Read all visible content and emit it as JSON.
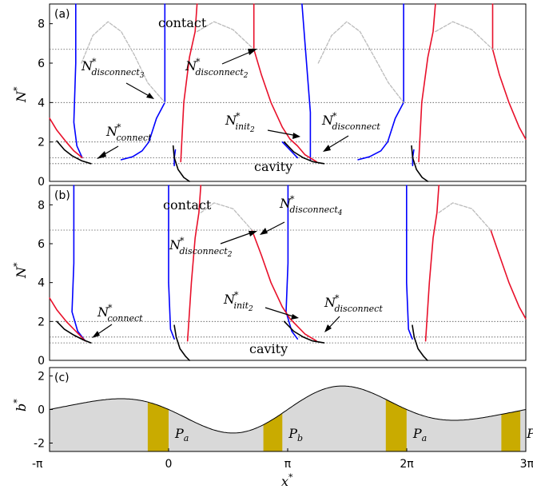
{
  "chart_data": [
    {
      "panel": "(a)",
      "type": "line",
      "ylabel": "N*",
      "ylim": [
        0,
        9
      ],
      "xlim": [
        -3.1416,
        9.4248
      ],
      "yticks": [
        "0",
        "2",
        "4",
        "6",
        "8"
      ],
      "grid": false,
      "reference_levels": [
        0.9,
        1.2,
        2.0,
        4.0,
        6.7
      ],
      "annotations": [
        {
          "base": "N",
          "sup": "*",
          "sub": "connect"
        },
        {
          "base": "N",
          "sup": "*",
          "sub": "disconnect",
          "subsub": "3"
        },
        {
          "base": "N",
          "sup": "*",
          "sub": "disconnect",
          "subsub": "2"
        },
        {
          "base": "N",
          "sup": "*",
          "sub": "init",
          "subsub": "2"
        },
        {
          "base": "N",
          "sup": "*",
          "sub": "disconnect"
        }
      ],
      "region_labels": [
        "contact",
        "cavity"
      ],
      "series": [
        {
          "color": "#0000ff",
          "segments": [
            [
              [
                -2.45,
                9
              ],
              [
                -2.45,
                6
              ],
              [
                -2.5,
                3
              ],
              [
                -2.42,
                1.8
              ],
              [
                -2.28,
                1.2
              ]
            ],
            [
              [
                -0.1,
                9
              ],
              [
                -0.1,
                4.0
              ],
              [
                -0.32,
                3.2
              ],
              [
                -0.52,
                2.0
              ],
              [
                -0.7,
                1.55
              ],
              [
                -0.95,
                1.25
              ],
              [
                -1.25,
                1.1
              ]
            ],
            [
              [
                0.15,
                0.8
              ],
              [
                0.15,
                1.2
              ],
              [
                0.18,
                1.6
              ]
            ],
            [
              [
                3.74,
                1.1
              ],
              [
                3.74,
                3.5
              ],
              [
                3.6,
                7.0
              ],
              [
                3.52,
                9
              ]
            ],
            [
              [
                3.4,
                1.2
              ],
              [
                3.25,
                1.5
              ],
              [
                3.0,
                2.0
              ]
            ],
            [
              [
                6.2,
                9
              ],
              [
                6.2,
                4.0
              ],
              [
                5.98,
                3.2
              ],
              [
                5.78,
                2.0
              ],
              [
                5.6,
                1.55
              ],
              [
                5.3,
                1.25
              ],
              [
                5.0,
                1.1
              ]
            ],
            [
              [
                6.44,
                0.8
              ],
              [
                6.44,
                1.2
              ],
              [
                6.47,
                1.6
              ]
            ]
          ]
        },
        {
          "color": "#e8102a",
          "segments": [
            [
              [
                -3.14,
                3.2
              ],
              [
                -2.95,
                2.6
              ],
              [
                -2.7,
                2.0
              ],
              [
                -2.5,
                1.55
              ],
              [
                -2.28,
                1.2
              ]
            ],
            [
              [
                0.32,
                1.0
              ],
              [
                0.4,
                4.0
              ],
              [
                0.55,
                6.3
              ],
              [
                0.7,
                7.6
              ],
              [
                0.75,
                9
              ]
            ],
            [
              [
                2.25,
                9
              ],
              [
                2.25,
                6.7
              ],
              [
                2.45,
                5.4
              ],
              [
                2.7,
                4.0
              ],
              [
                3.0,
                2.75
              ],
              [
                3.2,
                2.15
              ],
              [
                3.4,
                1.8
              ],
              [
                3.6,
                1.35
              ],
              [
                3.9,
                1.0
              ]
            ],
            [
              [
                6.6,
                1.0
              ],
              [
                6.68,
                4.0
              ],
              [
                6.84,
                6.3
              ],
              [
                6.98,
                7.6
              ],
              [
                7.04,
                9
              ]
            ],
            [
              [
                8.55,
                9
              ],
              [
                8.55,
                6.7
              ],
              [
                8.73,
                5.4
              ],
              [
                8.98,
                4.0
              ],
              [
                9.25,
                2.75
              ],
              [
                9.42,
                2.15
              ]
            ]
          ]
        },
        {
          "color": "#000000",
          "segments": [
            [
              [
                -2.95,
                2.05
              ],
              [
                -2.75,
                1.6
              ],
              [
                -2.55,
                1.3
              ],
              [
                -2.3,
                1.05
              ],
              [
                -2.05,
                0.9
              ]
            ],
            [
              [
                0.12,
                1.8
              ],
              [
                0.15,
                1.2
              ],
              [
                0.25,
                0.6
              ],
              [
                0.4,
                0.2
              ],
              [
                0.55,
                0.0
              ]
            ],
            [
              [
                3.05,
                2.0
              ],
              [
                3.3,
                1.5
              ],
              [
                3.55,
                1.2
              ],
              [
                3.8,
                1.0
              ],
              [
                4.1,
                0.9
              ]
            ],
            [
              [
                6.41,
                1.8
              ],
              [
                6.44,
                1.2
              ],
              [
                6.54,
                0.6
              ],
              [
                6.69,
                0.2
              ],
              [
                6.84,
                0.0
              ]
            ]
          ]
        },
        {
          "color": "#bbbbbb",
          "dashed": true,
          "segments": [
            [
              [
                -2.3,
                6.0
              ],
              [
                -2.0,
                7.4
              ],
              [
                -1.6,
                8.1
              ],
              [
                -1.25,
                7.6
              ],
              [
                -0.9,
                6.4
              ],
              [
                -0.55,
                5.0
              ],
              [
                -0.1,
                4.0
              ]
            ],
            [
              [
                0.75,
                7.6
              ],
              [
                1.2,
                8.1
              ],
              [
                1.7,
                7.7
              ],
              [
                2.25,
                6.7
              ]
            ],
            [
              [
                3.95,
                6.0
              ],
              [
                4.3,
                7.4
              ],
              [
                4.7,
                8.1
              ],
              [
                5.05,
                7.6
              ],
              [
                5.4,
                6.4
              ],
              [
                5.8,
                5.0
              ],
              [
                6.2,
                4.0
              ]
            ],
            [
              [
                7.04,
                7.6
              ],
              [
                7.5,
                8.1
              ],
              [
                8.0,
                7.7
              ],
              [
                8.55,
                6.7
              ]
            ]
          ]
        }
      ]
    },
    {
      "panel": "(b)",
      "type": "line",
      "ylabel": "N*",
      "ylim": [
        0,
        9
      ],
      "xlim": [
        -3.1416,
        9.4248
      ],
      "yticks": [
        "0",
        "2",
        "4",
        "6",
        "8"
      ],
      "grid": false,
      "reference_levels": [
        0.9,
        1.2,
        2.0,
        6.7
      ],
      "annotations": [
        {
          "base": "N",
          "sup": "*",
          "sub": "connect"
        },
        {
          "base": "N",
          "sup": "*",
          "sub": "disconnect",
          "subsub": "4"
        },
        {
          "base": "N",
          "sup": "*",
          "sub": "disconnect",
          "subsub": "2"
        },
        {
          "base": "N",
          "sup": "*",
          "sub": "init",
          "subsub": "2"
        },
        {
          "base": "N",
          "sup": "*",
          "sub": "disconnect"
        }
      ],
      "region_labels": [
        "contact",
        "cavity"
      ],
      "series": [
        {
          "color": "#0000ff",
          "segments": [
            [
              [
                -2.5,
                9
              ],
              [
                -2.5,
                5
              ],
              [
                -2.55,
                2.5
              ],
              [
                -2.4,
                1.5
              ],
              [
                -2.2,
                1.0
              ]
            ],
            [
              [
                0.0,
                9
              ],
              [
                0.0,
                4
              ],
              [
                0.05,
                1.6
              ],
              [
                0.15,
                1.1
              ]
            ],
            [
              [
                3.15,
                9
              ],
              [
                3.15,
                5
              ],
              [
                3.1,
                2.5
              ],
              [
                3.25,
                1.5
              ],
              [
                3.4,
                1.1
              ]
            ],
            [
              [
                6.28,
                9
              ],
              [
                6.28,
                4
              ],
              [
                6.33,
                1.6
              ],
              [
                6.43,
                1.1
              ]
            ]
          ]
        },
        {
          "color": "#e8102a",
          "segments": [
            [
              [
                -3.14,
                3.2
              ],
              [
                -2.95,
                2.6
              ],
              [
                -2.7,
                2.0
              ],
              [
                -2.45,
                1.5
              ],
              [
                -2.2,
                1.0
              ]
            ],
            [
              [
                0.5,
                1.0
              ],
              [
                0.6,
                4.0
              ],
              [
                0.7,
                6.3
              ],
              [
                0.8,
                7.6
              ],
              [
                0.85,
                9
              ]
            ],
            [
              [
                2.2,
                6.7
              ],
              [
                2.45,
                5.4
              ],
              [
                2.7,
                4.0
              ],
              [
                3.0,
                2.75
              ],
              [
                3.2,
                2.15
              ],
              [
                3.4,
                1.75
              ],
              [
                3.6,
                1.35
              ],
              [
                3.9,
                1.0
              ]
            ],
            [
              [
                6.78,
                1.0
              ],
              [
                6.88,
                4.0
              ],
              [
                6.98,
                6.3
              ],
              [
                7.08,
                7.6
              ],
              [
                7.13,
                9
              ]
            ],
            [
              [
                8.5,
                6.7
              ],
              [
                8.73,
                5.4
              ],
              [
                8.98,
                4.0
              ],
              [
                9.25,
                2.75
              ],
              [
                9.42,
                2.15
              ]
            ]
          ]
        },
        {
          "color": "#000000",
          "segments": [
            [
              [
                -2.95,
                2.0
              ],
              [
                -2.75,
                1.6
              ],
              [
                -2.5,
                1.3
              ],
              [
                -2.25,
                1.05
              ],
              [
                -2.05,
                0.9
              ]
            ],
            [
              [
                0.15,
                1.8
              ],
              [
                0.2,
                1.2
              ],
              [
                0.3,
                0.6
              ],
              [
                0.45,
                0.2
              ],
              [
                0.55,
                0.0
              ]
            ],
            [
              [
                3.05,
                2.0
              ],
              [
                3.3,
                1.5
              ],
              [
                3.55,
                1.2
              ],
              [
                3.8,
                1.0
              ],
              [
                4.1,
                0.9
              ]
            ],
            [
              [
                6.43,
                1.8
              ],
              [
                6.48,
                1.2
              ],
              [
                6.58,
                0.6
              ],
              [
                6.73,
                0.2
              ],
              [
                6.83,
                0.0
              ]
            ]
          ]
        },
        {
          "color": "#bbbbbb",
          "dashed": true,
          "segments": [
            [
              [
                0.85,
                7.6
              ],
              [
                1.2,
                8.1
              ],
              [
                1.7,
                7.8
              ],
              [
                2.2,
                6.7
              ]
            ],
            [
              [
                7.13,
                7.6
              ],
              [
                7.5,
                8.1
              ],
              [
                8.0,
                7.8
              ],
              [
                8.5,
                6.7
              ]
            ]
          ]
        }
      ]
    },
    {
      "panel": "(c)",
      "type": "area",
      "ylabel": "b*",
      "xlabel": "x*",
      "ylim": [
        -2.5,
        2.5
      ],
      "xlim": [
        -3.1416,
        9.4248
      ],
      "yticks": [
        "-2",
        "0",
        "2"
      ],
      "xticks": [
        {
          "value": -3.1416,
          "label": "-π"
        },
        {
          "value": 0,
          "label": "0"
        },
        {
          "value": 3.1416,
          "label": "π"
        },
        {
          "value": 6.2832,
          "label": "2π"
        },
        {
          "value": 9.4248,
          "label": "3π"
        }
      ],
      "curve": {
        "form": "b = -sin(x)·(1 + 0.55·sin(x/2))",
        "color": "#000000",
        "fill": "#d9d9d9"
      },
      "patches": [
        {
          "label_base": "P",
          "label_sub": "a",
          "x0": -0.55,
          "x1": 0.0,
          "color": "#c9ab00"
        },
        {
          "label_base": "P",
          "label_sub": "b",
          "x0": 2.5,
          "x1": 3.0,
          "color": "#c9ab00"
        },
        {
          "label_base": "P",
          "label_sub": "a",
          "x0": 5.73,
          "x1": 6.28,
          "color": "#c9ab00"
        },
        {
          "label_base": "P",
          "label_sub": "b",
          "x0": 8.78,
          "x1": 9.28,
          "color": "#c9ab00"
        }
      ]
    }
  ],
  "text": {
    "panel_a": "(a)",
    "panel_b": "(b)",
    "panel_c": "(c)",
    "contact": "contact",
    "cavity": "cavity",
    "ylabel_N": "N",
    "ylabel_b": "b",
    "xlabel": "x",
    "star": "*"
  }
}
